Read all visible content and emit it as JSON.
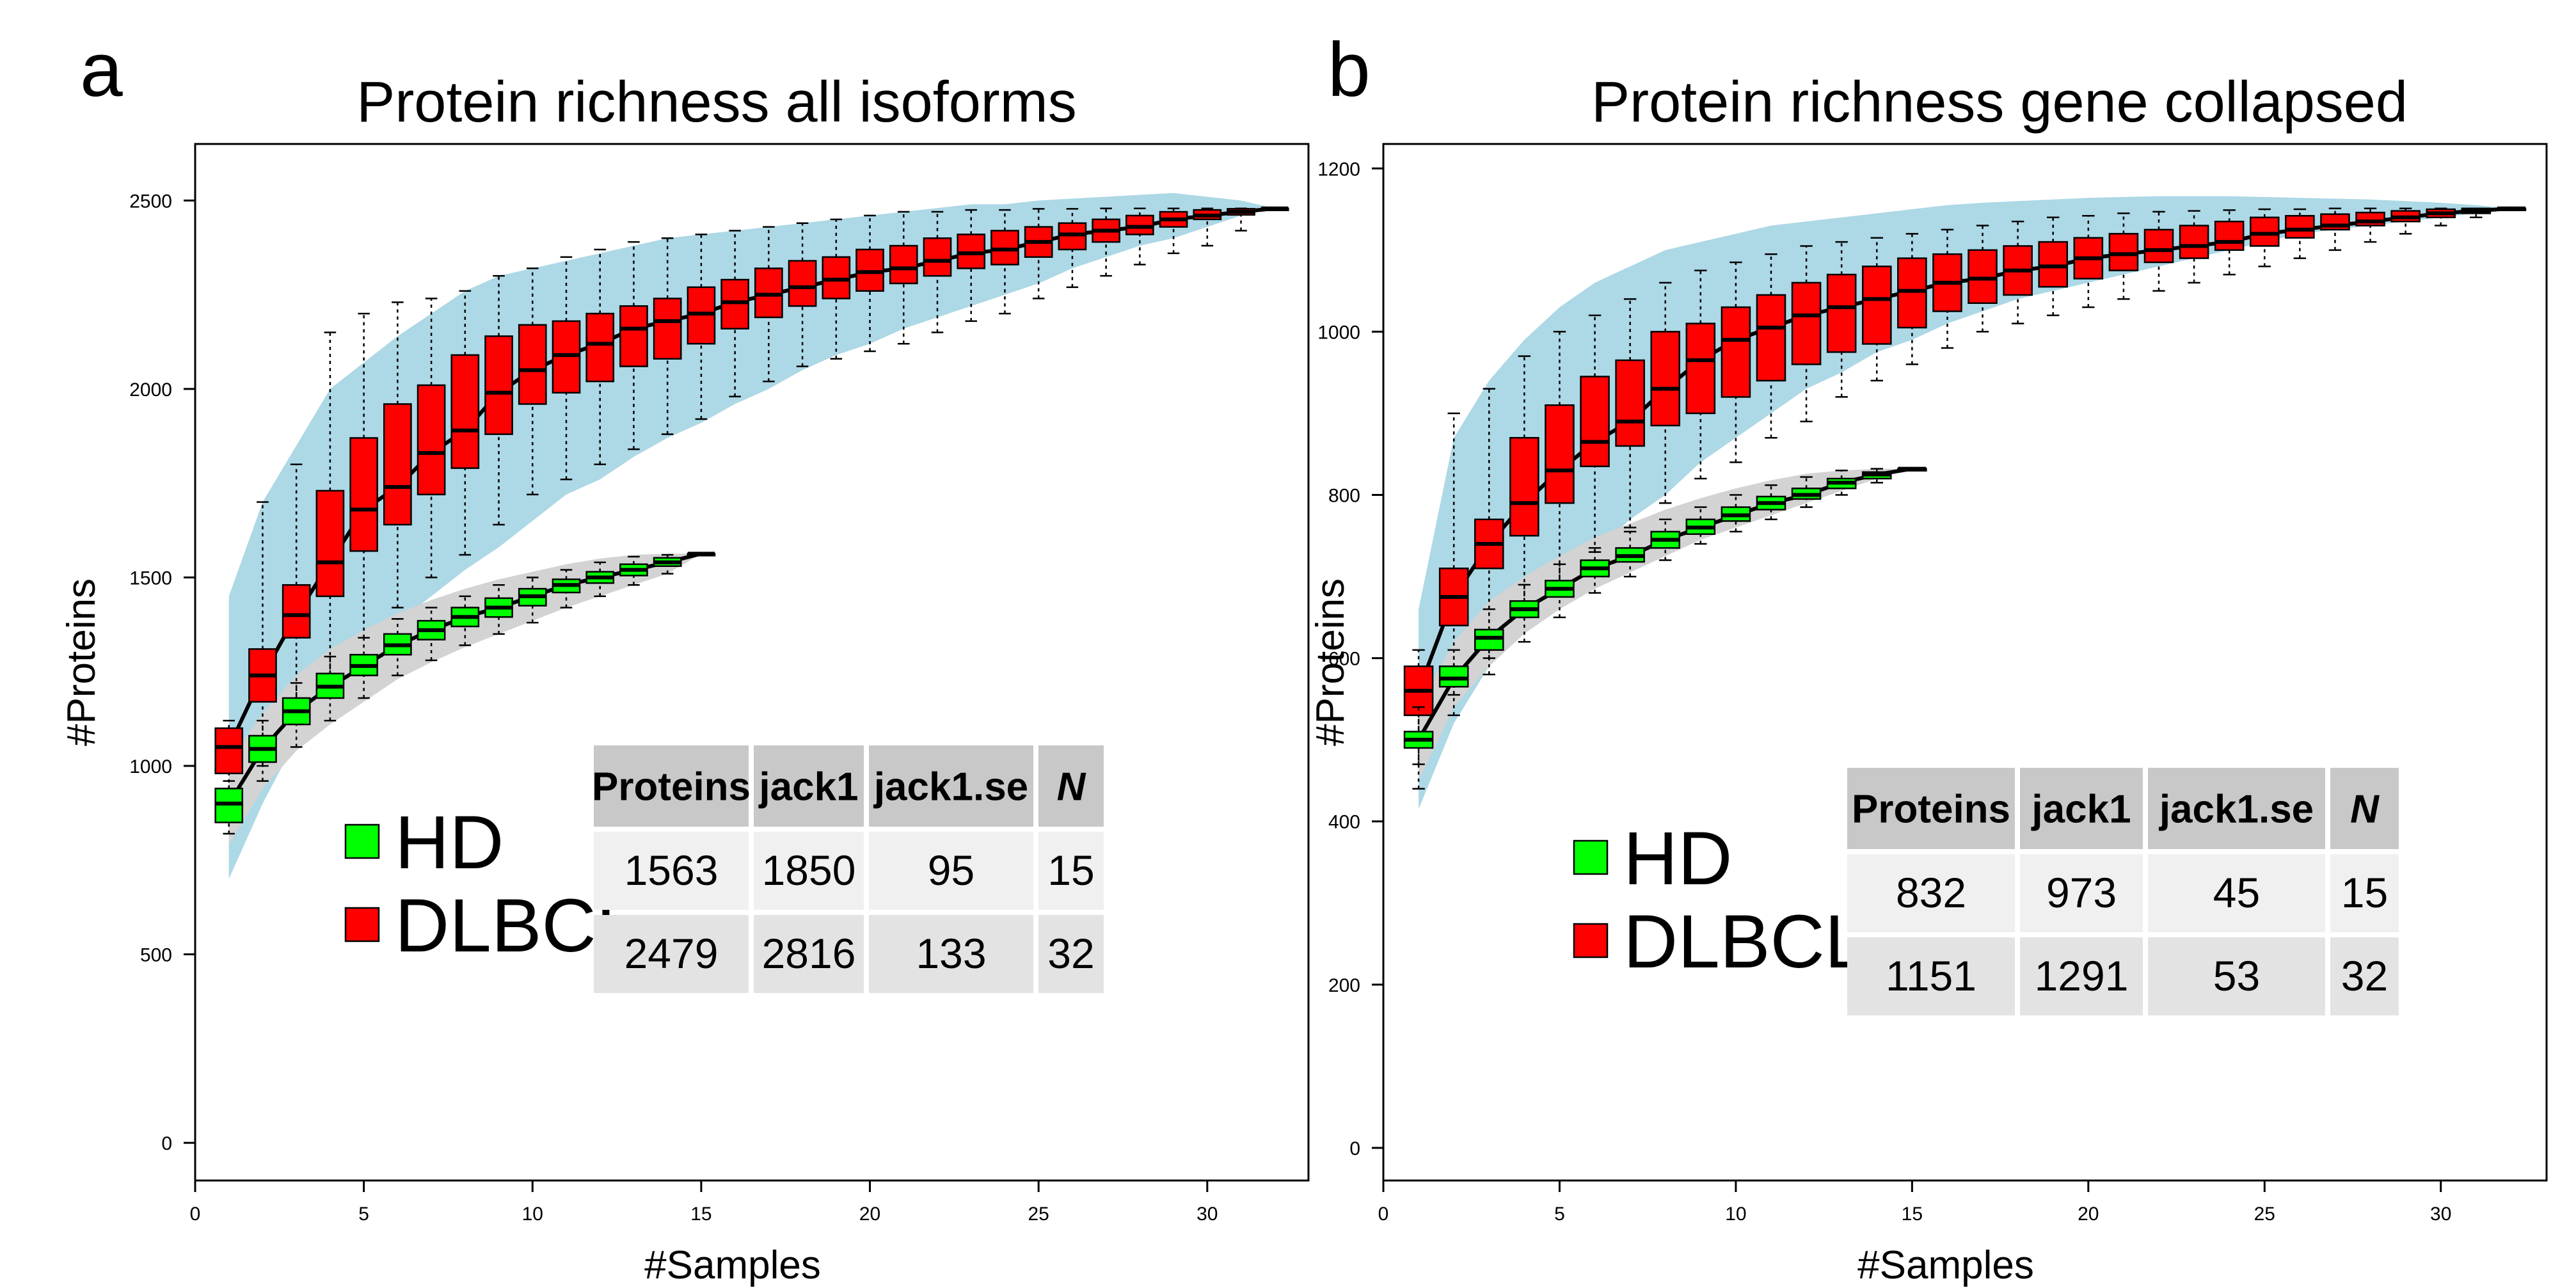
{
  "chart_data": [
    {
      "type": "box",
      "panel_letter": "a",
      "title": "Protein richness all isoforms",
      "xlabel": "#Samples",
      "ylabel": "#Proteins",
      "xlim": [
        0,
        33
      ],
      "ylim": [
        -100,
        2650
      ],
      "xticks": [
        0,
        5,
        10,
        15,
        20,
        25,
        30
      ],
      "yticks": [
        0,
        500,
        1000,
        1500,
        2000,
        2500
      ],
      "series": [
        {
          "name": "DLBCL",
          "color": "#ff0000",
          "band_color": "#add8e6",
          "x": [
            1,
            2,
            3,
            4,
            5,
            6,
            7,
            8,
            9,
            10,
            11,
            12,
            13,
            14,
            15,
            16,
            17,
            18,
            19,
            20,
            21,
            22,
            23,
            24,
            25,
            26,
            27,
            28,
            29,
            30,
            31,
            32
          ],
          "median": [
            1050,
            1240,
            1400,
            1540,
            1680,
            1740,
            1830,
            1890,
            1990,
            2050,
            2090,
            2120,
            2160,
            2180,
            2200,
            2230,
            2250,
            2270,
            2290,
            2310,
            2320,
            2340,
            2360,
            2370,
            2390,
            2410,
            2420,
            2430,
            2450,
            2460,
            2470,
            2479
          ],
          "q1": [
            980,
            1170,
            1340,
            1450,
            1570,
            1640,
            1720,
            1790,
            1880,
            1960,
            1990,
            2020,
            2060,
            2080,
            2120,
            2160,
            2190,
            2220,
            2240,
            2260,
            2280,
            2300,
            2320,
            2330,
            2350,
            2370,
            2390,
            2410,
            2430,
            2450,
            2462,
            2479
          ],
          "q3": [
            1100,
            1310,
            1480,
            1730,
            1870,
            1960,
            2010,
            2090,
            2140,
            2170,
            2180,
            2200,
            2220,
            2240,
            2270,
            2290,
            2320,
            2340,
            2350,
            2370,
            2380,
            2400,
            2410,
            2420,
            2430,
            2440,
            2450,
            2460,
            2470,
            2475,
            2478,
            2479
          ],
          "whisker_low": [
            900,
            1000,
            1150,
            1200,
            1340,
            1420,
            1500,
            1560,
            1640,
            1720,
            1760,
            1800,
            1840,
            1880,
            1920,
            1980,
            2020,
            2060,
            2080,
            2100,
            2120,
            2150,
            2180,
            2200,
            2240,
            2270,
            2300,
            2330,
            2360,
            2380,
            2420,
            2479
          ],
          "whisker_high": [
            1120,
            1700,
            1800,
            2150,
            2200,
            2230,
            2240,
            2260,
            2300,
            2320,
            2350,
            2370,
            2390,
            2400,
            2410,
            2420,
            2430,
            2440,
            2450,
            2460,
            2470,
            2470,
            2475,
            2475,
            2478,
            2478,
            2479,
            2479,
            2479,
            2479,
            2479,
            2479
          ],
          "band_low": [
            700,
            900,
            1070,
            1200,
            1300,
            1380,
            1450,
            1520,
            1580,
            1650,
            1720,
            1760,
            1820,
            1870,
            1910,
            1960,
            2000,
            2050,
            2090,
            2120,
            2160,
            2190,
            2220,
            2250,
            2280,
            2320,
            2350,
            2380,
            2400,
            2430,
            2460,
            2479
          ],
          "band_high": [
            1450,
            1700,
            1850,
            2000,
            2070,
            2140,
            2200,
            2260,
            2300,
            2320,
            2340,
            2360,
            2380,
            2400,
            2410,
            2420,
            2430,
            2440,
            2450,
            2460,
            2470,
            2480,
            2490,
            2490,
            2500,
            2505,
            2510,
            2515,
            2520,
            2510,
            2500,
            2479
          ]
        },
        {
          "name": "HD",
          "color": "#00ff00",
          "band_color": "#d3d3d3",
          "x": [
            1,
            2,
            3,
            4,
            5,
            6,
            7,
            8,
            9,
            10,
            11,
            12,
            13,
            14,
            15
          ],
          "median": [
            900,
            1045,
            1145,
            1210,
            1265,
            1320,
            1360,
            1395,
            1420,
            1450,
            1480,
            1500,
            1520,
            1540,
            1563
          ],
          "q1": [
            850,
            1010,
            1110,
            1180,
            1240,
            1295,
            1335,
            1370,
            1395,
            1425,
            1460,
            1485,
            1505,
            1530,
            1563
          ],
          "q3": [
            940,
            1080,
            1180,
            1245,
            1295,
            1350,
            1385,
            1420,
            1445,
            1470,
            1495,
            1515,
            1535,
            1552,
            1563
          ],
          "whisker_low": [
            820,
            960,
            1050,
            1120,
            1180,
            1240,
            1280,
            1320,
            1350,
            1380,
            1420,
            1450,
            1480,
            1510,
            1563
          ],
          "whisker_high": [
            960,
            1120,
            1220,
            1290,
            1340,
            1390,
            1420,
            1450,
            1480,
            1500,
            1520,
            1540,
            1555,
            1560,
            1563
          ],
          "band_low": [
            790,
            940,
            1040,
            1110,
            1170,
            1230,
            1275,
            1315,
            1350,
            1385,
            1420,
            1450,
            1480,
            1510,
            1563
          ],
          "band_high": [
            1010,
            1140,
            1240,
            1310,
            1360,
            1405,
            1440,
            1470,
            1495,
            1515,
            1535,
            1550,
            1560,
            1563,
            1563
          ]
        }
      ],
      "table": {
        "columns": [
          "Proteins",
          "jack1",
          "jack1.se",
          "N"
        ],
        "rows": [
          {
            "label": "HD",
            "values": [
              "1563",
              "1850",
              "95",
              "15"
            ]
          },
          {
            "label": "DLBCL",
            "values": [
              "2479",
              "2816",
              "133",
              "32"
            ]
          }
        ]
      }
    },
    {
      "type": "box",
      "panel_letter": "b",
      "title": "Protein richness gene collapsed",
      "xlabel": "#Samples",
      "ylabel": "#Proteins",
      "xlim": [
        0,
        33
      ],
      "ylim": [
        -40,
        1230
      ],
      "xticks": [
        0,
        5,
        10,
        15,
        20,
        25,
        30
      ],
      "yticks": [
        0,
        200,
        400,
        600,
        800,
        1000,
        1200
      ],
      "series": [
        {
          "name": "DLBCL",
          "color": "#ff0000",
          "band_color": "#add8e6",
          "x": [
            1,
            2,
            3,
            4,
            5,
            6,
            7,
            8,
            9,
            10,
            11,
            12,
            13,
            14,
            15,
            16,
            17,
            18,
            19,
            20,
            21,
            22,
            23,
            24,
            25,
            26,
            27,
            28,
            29,
            30,
            31,
            32
          ],
          "median": [
            560,
            675,
            740,
            790,
            830,
            865,
            890,
            930,
            965,
            990,
            1005,
            1020,
            1030,
            1040,
            1050,
            1060,
            1065,
            1075,
            1080,
            1090,
            1095,
            1100,
            1105,
            1110,
            1120,
            1125,
            1130,
            1135,
            1140,
            1145,
            1148,
            1151
          ],
          "q1": [
            530,
            640,
            710,
            750,
            790,
            835,
            860,
            885,
            900,
            920,
            940,
            960,
            975,
            985,
            1005,
            1025,
            1035,
            1045,
            1055,
            1065,
            1075,
            1085,
            1090,
            1100,
            1105,
            1115,
            1125,
            1130,
            1135,
            1140,
            1145,
            1151
          ],
          "q3": [
            590,
            710,
            770,
            870,
            910,
            945,
            965,
            1000,
            1010,
            1030,
            1045,
            1060,
            1070,
            1080,
            1090,
            1095,
            1100,
            1105,
            1110,
            1115,
            1120,
            1125,
            1130,
            1135,
            1140,
            1142,
            1144,
            1146,
            1148,
            1150,
            1151,
            1151
          ],
          "whisker_low": [
            470,
            555,
            600,
            650,
            690,
            730,
            760,
            790,
            820,
            840,
            870,
            890,
            920,
            940,
            960,
            980,
            1000,
            1010,
            1020,
            1030,
            1040,
            1050,
            1060,
            1070,
            1080,
            1090,
            1100,
            1110,
            1120,
            1130,
            1140,
            1151
          ],
          "whisker_high": [
            610,
            900,
            930,
            970,
            1000,
            1020,
            1040,
            1060,
            1075,
            1085,
            1095,
            1105,
            1110,
            1115,
            1120,
            1125,
            1130,
            1135,
            1140,
            1142,
            1145,
            1147,
            1148,
            1149,
            1150,
            1150,
            1151,
            1151,
            1151,
            1151,
            1151,
            1151
          ],
          "band_low": [
            415,
            520,
            590,
            640,
            690,
            730,
            770,
            800,
            840,
            870,
            900,
            930,
            950,
            975,
            990,
            1010,
            1025,
            1040,
            1050,
            1060,
            1070,
            1080,
            1090,
            1100,
            1110,
            1120,
            1125,
            1130,
            1135,
            1140,
            1145,
            1151
          ],
          "band_high": [
            660,
            870,
            940,
            990,
            1030,
            1060,
            1080,
            1100,
            1110,
            1120,
            1130,
            1135,
            1140,
            1145,
            1150,
            1155,
            1158,
            1160,
            1162,
            1164,
            1165,
            1166,
            1166,
            1166,
            1165,
            1164,
            1163,
            1162,
            1160,
            1158,
            1155,
            1151
          ]
        },
        {
          "name": "HD",
          "color": "#00ff00",
          "band_color": "#d3d3d3",
          "x": [
            1,
            2,
            3,
            4,
            5,
            6,
            7,
            8,
            9,
            10,
            11,
            12,
            13,
            14,
            15
          ],
          "median": [
            500,
            575,
            625,
            660,
            685,
            710,
            725,
            745,
            760,
            775,
            790,
            800,
            815,
            825,
            832
          ],
          "q1": [
            490,
            565,
            610,
            650,
            675,
            700,
            718,
            735,
            752,
            768,
            782,
            795,
            808,
            820,
            832
          ],
          "q3": [
            510,
            590,
            635,
            670,
            695,
            720,
            735,
            755,
            770,
            785,
            798,
            808,
            820,
            828,
            832
          ],
          "whisker_low": [
            440,
            530,
            580,
            620,
            650,
            680,
            700,
            720,
            740,
            755,
            770,
            785,
            800,
            815,
            832
          ],
          "whisker_high": [
            540,
            610,
            660,
            690,
            715,
            735,
            755,
            770,
            785,
            800,
            812,
            822,
            830,
            832,
            832
          ],
          "band_low": [
            450,
            540,
            590,
            630,
            660,
            685,
            705,
            725,
            745,
            760,
            775,
            790,
            805,
            820,
            832
          ],
          "band_high": [
            540,
            620,
            670,
            700,
            725,
            748,
            765,
            782,
            796,
            808,
            818,
            826,
            830,
            832,
            832
          ]
        }
      ],
      "table": {
        "columns": [
          "Proteins",
          "jack1",
          "jack1.se",
          "N"
        ],
        "rows": [
          {
            "label": "HD",
            "values": [
              "832",
              "973",
              "45",
              "15"
            ]
          },
          {
            "label": "DLBCL",
            "values": [
              "1151",
              "1291",
              "53",
              "32"
            ]
          }
        ]
      }
    }
  ]
}
